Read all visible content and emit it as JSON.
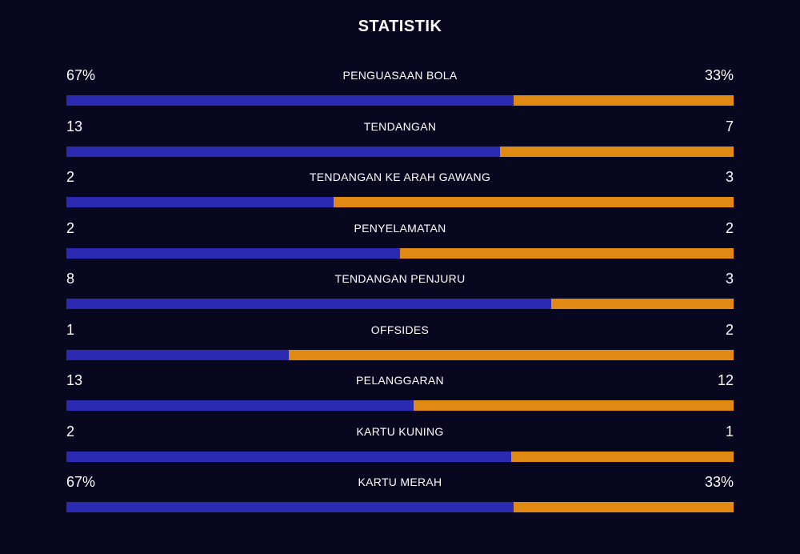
{
  "title": "STATISTIK",
  "colors": {
    "home": "#2a2ab3",
    "away": "#e08a14",
    "background": "#07071f"
  },
  "stats": [
    {
      "label": "PENGUASAAN BOLA",
      "home": "67%",
      "away": "33%",
      "home_share": 0.67
    },
    {
      "label": "TENDANGAN",
      "home": "13",
      "away": "7",
      "home_share": 0.65
    },
    {
      "label": "TENDANGAN KE ARAH GAWANG",
      "home": "2",
      "away": "3",
      "home_share": 0.4
    },
    {
      "label": "PENYELAMATAN",
      "home": "2",
      "away": "2",
      "home_share": 0.5
    },
    {
      "label": "TENDANGAN PENJURU",
      "home": "8",
      "away": "3",
      "home_share": 0.727
    },
    {
      "label": "OFFSIDES",
      "home": "1",
      "away": "2",
      "home_share": 0.333
    },
    {
      "label": "PELANGGARAN",
      "home": "13",
      "away": "12",
      "home_share": 0.52
    },
    {
      "label": "KARTU KUNING",
      "home": "2",
      "away": "1",
      "home_share": 0.667
    },
    {
      "label": "KARTU MERAH",
      "home": "67%",
      "away": "33%",
      "home_share": 0.67
    }
  ]
}
